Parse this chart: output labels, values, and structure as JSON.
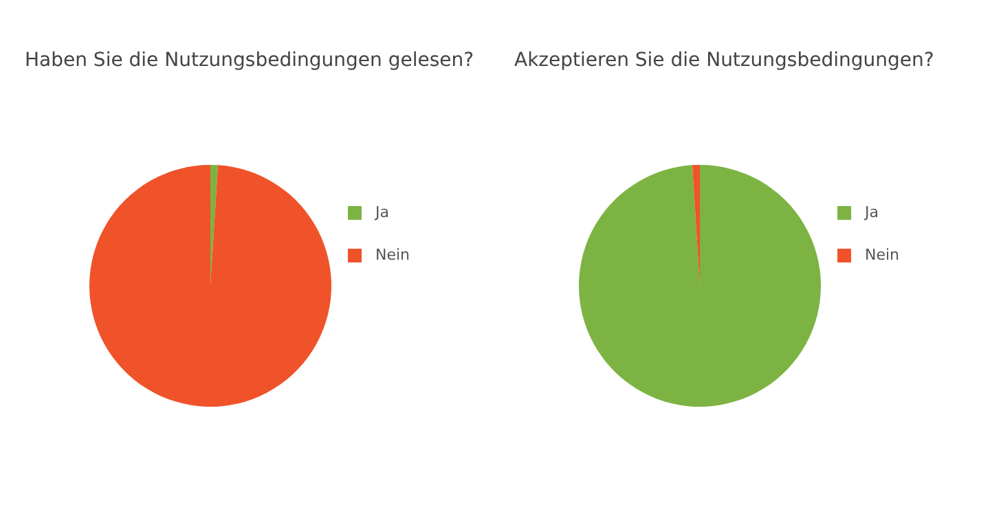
{
  "chart_data": [
    {
      "type": "pie",
      "title": "Haben Sie die Nutzungsbedingungen gelesen?",
      "categories": [
        "Ja",
        "Nein"
      ],
      "values": [
        1,
        99
      ],
      "colors": [
        "#7cb342",
        "#f0522a"
      ],
      "legend": "right"
    },
    {
      "type": "pie",
      "title": "Akzeptieren Sie die Nutzungsbedingungen?",
      "categories": [
        "Ja",
        "Nein"
      ],
      "values": [
        99,
        1
      ],
      "colors": [
        "#7cb342",
        "#f0522a"
      ],
      "legend": "right"
    }
  ]
}
